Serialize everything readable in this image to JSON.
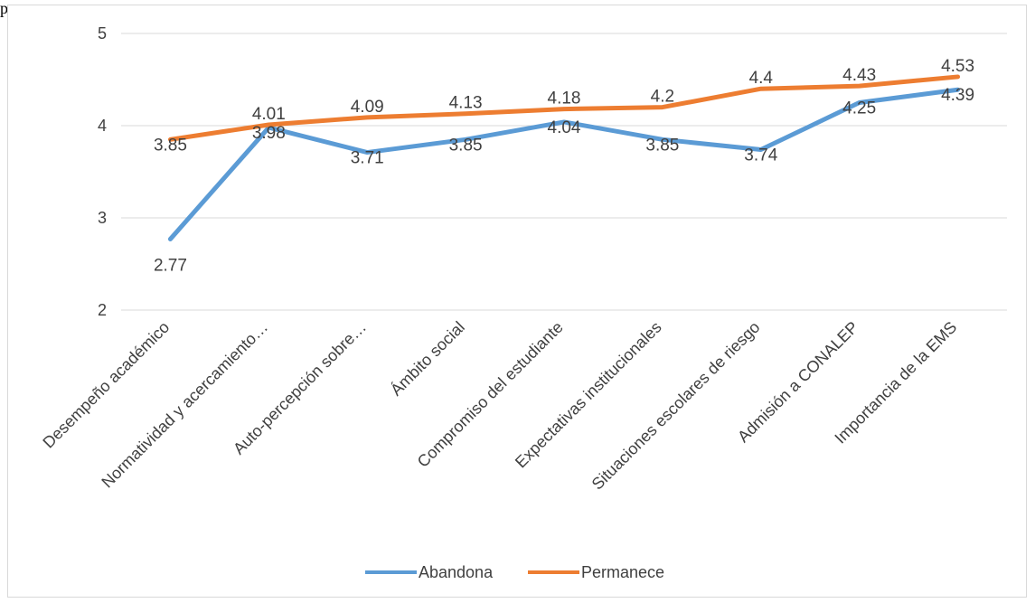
{
  "top_text": "p",
  "chart_data": {
    "type": "line",
    "title": "",
    "xlabel": "",
    "ylabel": "",
    "categories": [
      "Desempeño académico",
      "Normatividad y acercamiento…",
      "Auto-percepción sobre…",
      "Ámbito social",
      "Compromiso del estudiante",
      "Expectativas institucionales",
      "Situaciones escolares de riesgo",
      "Admisión a CONALEP",
      "Importancia de la EMS"
    ],
    "ylim": [
      2,
      5
    ],
    "yticks": [
      "2",
      "3",
      "4",
      "5"
    ],
    "grid": true,
    "legend_position": "bottom",
    "series": [
      {
        "name": "Abandona",
        "color": "#5b9bd5",
        "values": [
          2.77,
          3.98,
          3.71,
          3.85,
          4.04,
          3.85,
          3.74,
          4.25,
          4.39
        ],
        "labels": [
          "2.77",
          "3.98",
          "3.71",
          "3.85",
          "4.04",
          "3.85",
          "3.74",
          "4.25",
          "4.39"
        ]
      },
      {
        "name": "Permanece",
        "color": "#ed7d31",
        "values": [
          3.85,
          4.01,
          4.09,
          4.13,
          4.18,
          4.2,
          4.4,
          4.43,
          4.53
        ],
        "labels": [
          "3.85",
          "4.01",
          "4.09",
          "4.13",
          "4.18",
          "4.2",
          "4.4",
          "4.43",
          "4.53"
        ]
      }
    ]
  }
}
